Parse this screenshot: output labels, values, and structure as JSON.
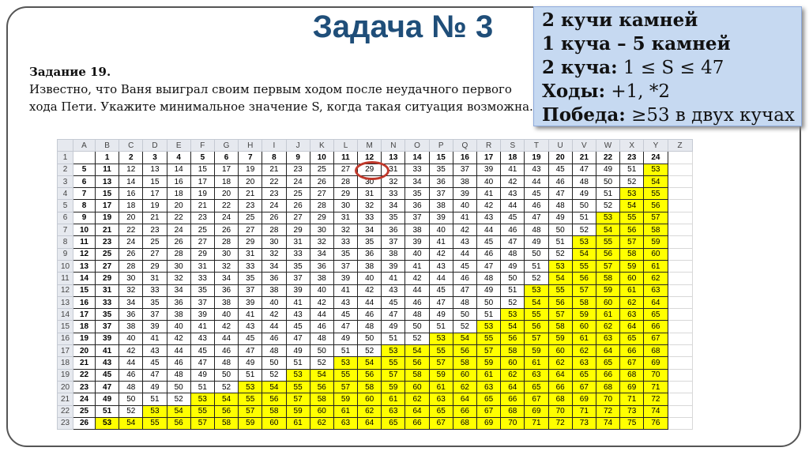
{
  "title": "Задача № 3",
  "info_box": {
    "line1": "2 кучи камней",
    "line2": "1 куча – 5 камней",
    "line3_label": "2 куча:",
    "line3_value": " 1 ≤ S ≤ 47",
    "line4_label": "Ходы:",
    "line4_value": " +1, *2",
    "line5_label": "Победа:",
    "line5_value": " ≥53 в двух кучах"
  },
  "task": {
    "heading": "Задание 19.",
    "text": "Известно, что Ваня выиграл своим первым ходом после неудачного первого хода Пети. Укажите минимальное значение S, когда такая ситуация возможна."
  },
  "colors": {
    "highlight": "#ffff00",
    "circle": "#c0392b",
    "title": "#1f4e79"
  },
  "sheet": {
    "columns": [
      "A",
      "B",
      "C",
      "D",
      "E",
      "F",
      "G",
      "H",
      "I",
      "J",
      "K",
      "L",
      "M",
      "N",
      "O",
      "P",
      "Q",
      "R",
      "S",
      "T",
      "U",
      "V",
      "W",
      "X",
      "Y",
      "Z"
    ],
    "header_row": [
      1,
      2,
      3,
      4,
      5,
      6,
      7,
      8,
      9,
      10,
      11,
      12,
      13,
      14,
      15,
      16,
      17,
      18,
      19,
      20,
      21,
      22,
      23,
      24
    ],
    "threshold": 53,
    "circled_cell": "M2",
    "rows": [
      {
        "a": 5,
        "v": [
          11,
          12,
          13,
          14,
          15,
          17,
          19,
          21,
          23,
          25,
          27,
          29,
          31,
          33,
          35,
          37,
          39,
          41,
          43,
          45,
          47,
          49,
          51,
          53
        ]
      },
      {
        "a": 6,
        "v": [
          13,
          14,
          15,
          16,
          17,
          18,
          20,
          22,
          24,
          26,
          28,
          30,
          32,
          34,
          36,
          38,
          40,
          42,
          44,
          46,
          48,
          50,
          52,
          54
        ]
      },
      {
        "a": 7,
        "v": [
          15,
          16,
          17,
          18,
          19,
          20,
          21,
          23,
          25,
          27,
          29,
          31,
          33,
          35,
          37,
          39,
          41,
          43,
          45,
          47,
          49,
          51,
          53,
          55
        ]
      },
      {
        "a": 8,
        "v": [
          17,
          18,
          19,
          20,
          21,
          22,
          23,
          24,
          26,
          28,
          30,
          32,
          34,
          36,
          38,
          40,
          42,
          44,
          46,
          48,
          50,
          52,
          54,
          56
        ]
      },
      {
        "a": 9,
        "v": [
          19,
          20,
          21,
          22,
          23,
          24,
          25,
          26,
          27,
          29,
          31,
          33,
          35,
          37,
          39,
          41,
          43,
          45,
          47,
          49,
          51,
          53,
          55,
          57
        ]
      },
      {
        "a": 10,
        "v": [
          21,
          22,
          23,
          24,
          25,
          26,
          27,
          28,
          29,
          30,
          32,
          34,
          36,
          38,
          40,
          42,
          44,
          46,
          48,
          50,
          52,
          54,
          56,
          58
        ]
      },
      {
        "a": 11,
        "v": [
          23,
          24,
          25,
          26,
          27,
          28,
          29,
          30,
          31,
          32,
          33,
          35,
          37,
          39,
          41,
          43,
          45,
          47,
          49,
          51,
          53,
          55,
          57,
          59
        ]
      },
      {
        "a": 12,
        "v": [
          25,
          26,
          27,
          28,
          29,
          30,
          31,
          32,
          33,
          34,
          35,
          36,
          38,
          40,
          42,
          44,
          46,
          48,
          50,
          52,
          54,
          56,
          58,
          60
        ]
      },
      {
        "a": 13,
        "v": [
          27,
          28,
          29,
          30,
          31,
          32,
          33,
          34,
          35,
          36,
          37,
          38,
          39,
          41,
          43,
          45,
          47,
          49,
          51,
          53,
          55,
          57,
          59,
          61
        ]
      },
      {
        "a": 14,
        "v": [
          29,
          30,
          31,
          32,
          33,
          34,
          35,
          36,
          37,
          38,
          39,
          40,
          41,
          42,
          44,
          46,
          48,
          50,
          52,
          54,
          56,
          58,
          60,
          62
        ]
      },
      {
        "a": 15,
        "v": [
          31,
          32,
          33,
          34,
          35,
          36,
          37,
          38,
          39,
          40,
          41,
          42,
          43,
          44,
          45,
          47,
          49,
          51,
          53,
          55,
          57,
          59,
          61,
          63
        ]
      },
      {
        "a": 16,
        "v": [
          33,
          34,
          35,
          36,
          37,
          38,
          39,
          40,
          41,
          42,
          43,
          44,
          45,
          46,
          47,
          48,
          50,
          52,
          54,
          56,
          58,
          60,
          62,
          64
        ]
      },
      {
        "a": 17,
        "v": [
          35,
          36,
          37,
          38,
          39,
          40,
          41,
          42,
          43,
          44,
          45,
          46,
          47,
          48,
          49,
          50,
          51,
          53,
          55,
          57,
          59,
          61,
          63,
          65
        ]
      },
      {
        "a": 18,
        "v": [
          37,
          38,
          39,
          40,
          41,
          42,
          43,
          44,
          45,
          46,
          47,
          48,
          49,
          50,
          51,
          52,
          53,
          54,
          56,
          58,
          60,
          62,
          64,
          66
        ]
      },
      {
        "a": 19,
        "v": [
          39,
          40,
          41,
          42,
          43,
          44,
          45,
          46,
          47,
          48,
          49,
          50,
          51,
          52,
          53,
          54,
          55,
          56,
          57,
          59,
          61,
          63,
          65,
          67
        ]
      },
      {
        "a": 20,
        "v": [
          41,
          42,
          43,
          44,
          45,
          46,
          47,
          48,
          49,
          50,
          51,
          52,
          53,
          54,
          55,
          56,
          57,
          58,
          59,
          60,
          62,
          64,
          66,
          68
        ]
      },
      {
        "a": 21,
        "v": [
          43,
          44,
          45,
          46,
          47,
          48,
          49,
          50,
          51,
          52,
          53,
          54,
          55,
          56,
          57,
          58,
          59,
          60,
          61,
          62,
          63,
          65,
          67,
          69
        ]
      },
      {
        "a": 22,
        "v": [
          45,
          46,
          47,
          48,
          49,
          50,
          51,
          52,
          53,
          54,
          55,
          56,
          57,
          58,
          59,
          60,
          61,
          62,
          63,
          64,
          65,
          66,
          68,
          70
        ]
      },
      {
        "a": 23,
        "v": [
          47,
          48,
          49,
          50,
          51,
          52,
          53,
          54,
          55,
          56,
          57,
          58,
          59,
          60,
          61,
          62,
          63,
          64,
          65,
          66,
          67,
          68,
          69,
          71
        ]
      },
      {
        "a": 24,
        "v": [
          49,
          50,
          51,
          52,
          53,
          54,
          55,
          56,
          57,
          58,
          59,
          60,
          61,
          62,
          63,
          64,
          65,
          66,
          67,
          68,
          69,
          70,
          71,
          72
        ]
      },
      {
        "a": 25,
        "v": [
          51,
          52,
          53,
          54,
          55,
          56,
          57,
          58,
          59,
          60,
          61,
          62,
          63,
          64,
          65,
          66,
          67,
          68,
          69,
          70,
          71,
          72,
          73,
          74
        ]
      },
      {
        "a": 26,
        "v": [
          53,
          54,
          55,
          56,
          57,
          58,
          59,
          60,
          61,
          62,
          63,
          64,
          65,
          66,
          67,
          68,
          69,
          70,
          71,
          72,
          73,
          74,
          75,
          76
        ]
      }
    ]
  }
}
